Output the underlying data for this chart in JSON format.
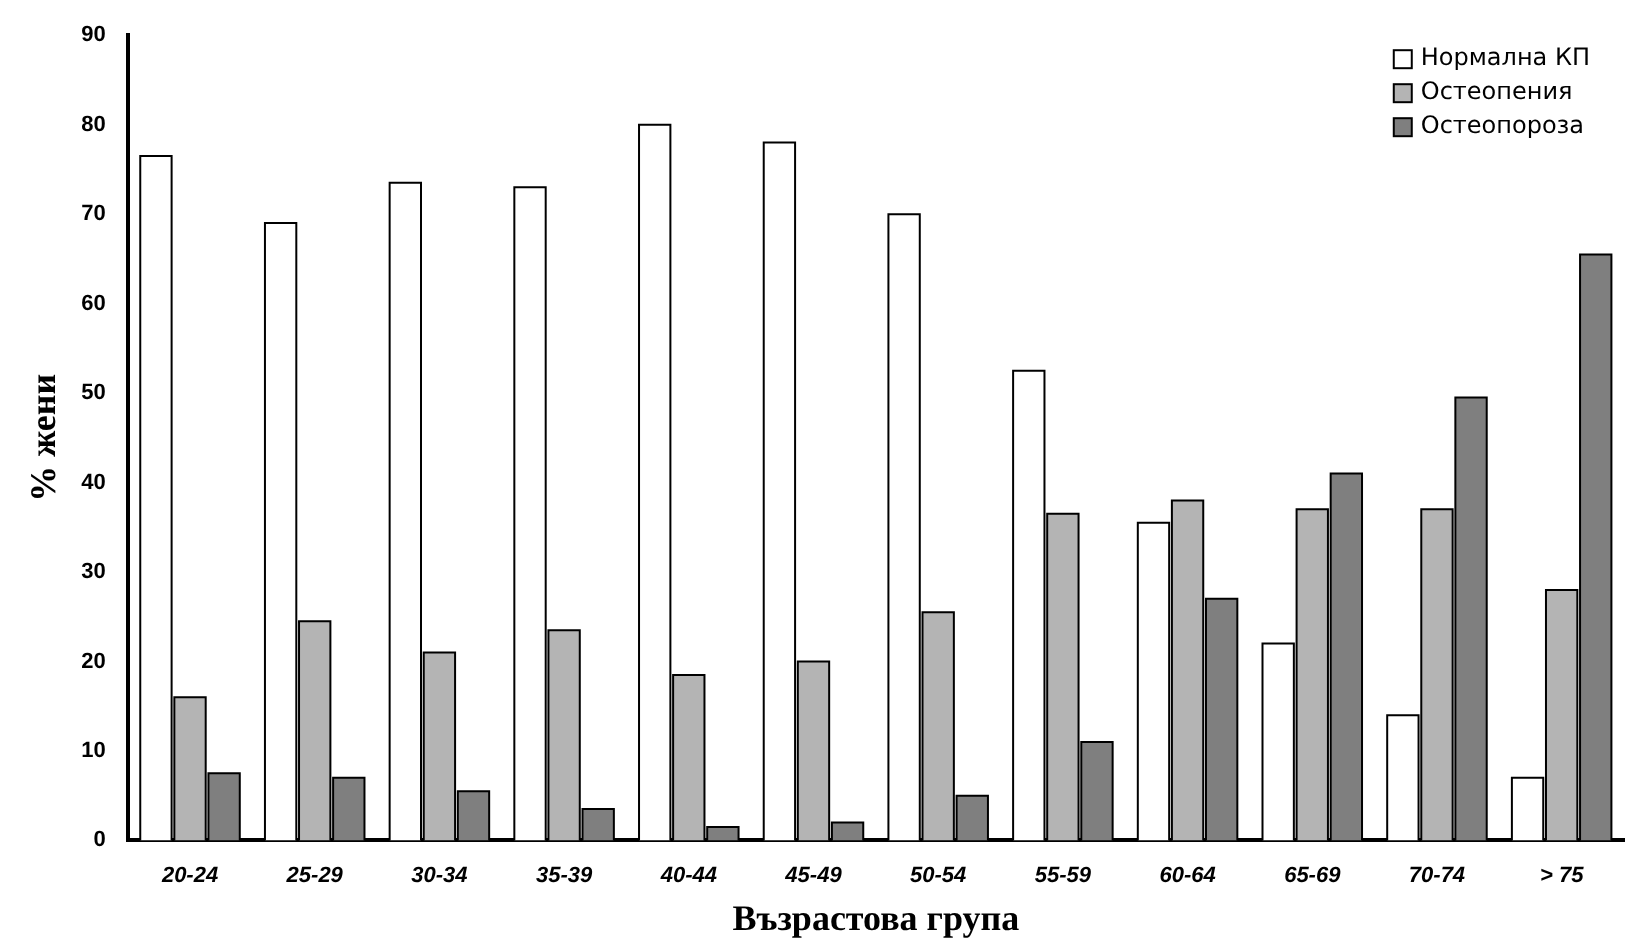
{
  "chart_data": {
    "type": "bar",
    "xlabel": "Възрастова група",
    "ylabel": "% жени",
    "categories": [
      "20-24",
      "25-29",
      "30-34",
      "35-39",
      "40-44",
      "45-49",
      "50-54",
      "55-59",
      "60-64",
      "65-69",
      "70-74",
      "> 75"
    ],
    "series": [
      {
        "name": "Нормална КП",
        "color": "#ffffff",
        "values": [
          76.5,
          69,
          73.5,
          73,
          80,
          78,
          70,
          52.5,
          35.5,
          22,
          14,
          7
        ]
      },
      {
        "name": "Остеопения",
        "color": "#b4b4b4",
        "values": [
          16,
          24.5,
          21,
          23.5,
          18.5,
          20,
          25.5,
          36.5,
          38,
          37,
          37,
          28
        ]
      },
      {
        "name": "Остеопороза",
        "color": "#7f7f7f",
        "values": [
          7.5,
          7,
          5.5,
          3.5,
          1.5,
          2,
          5,
          11,
          27,
          41,
          49.5,
          65.5
        ]
      }
    ],
    "ylim": [
      0,
      90
    ],
    "yticks": [
      0,
      10,
      20,
      30,
      40,
      50,
      60,
      70,
      80,
      90
    ],
    "grid": false,
    "legend": "top right"
  }
}
